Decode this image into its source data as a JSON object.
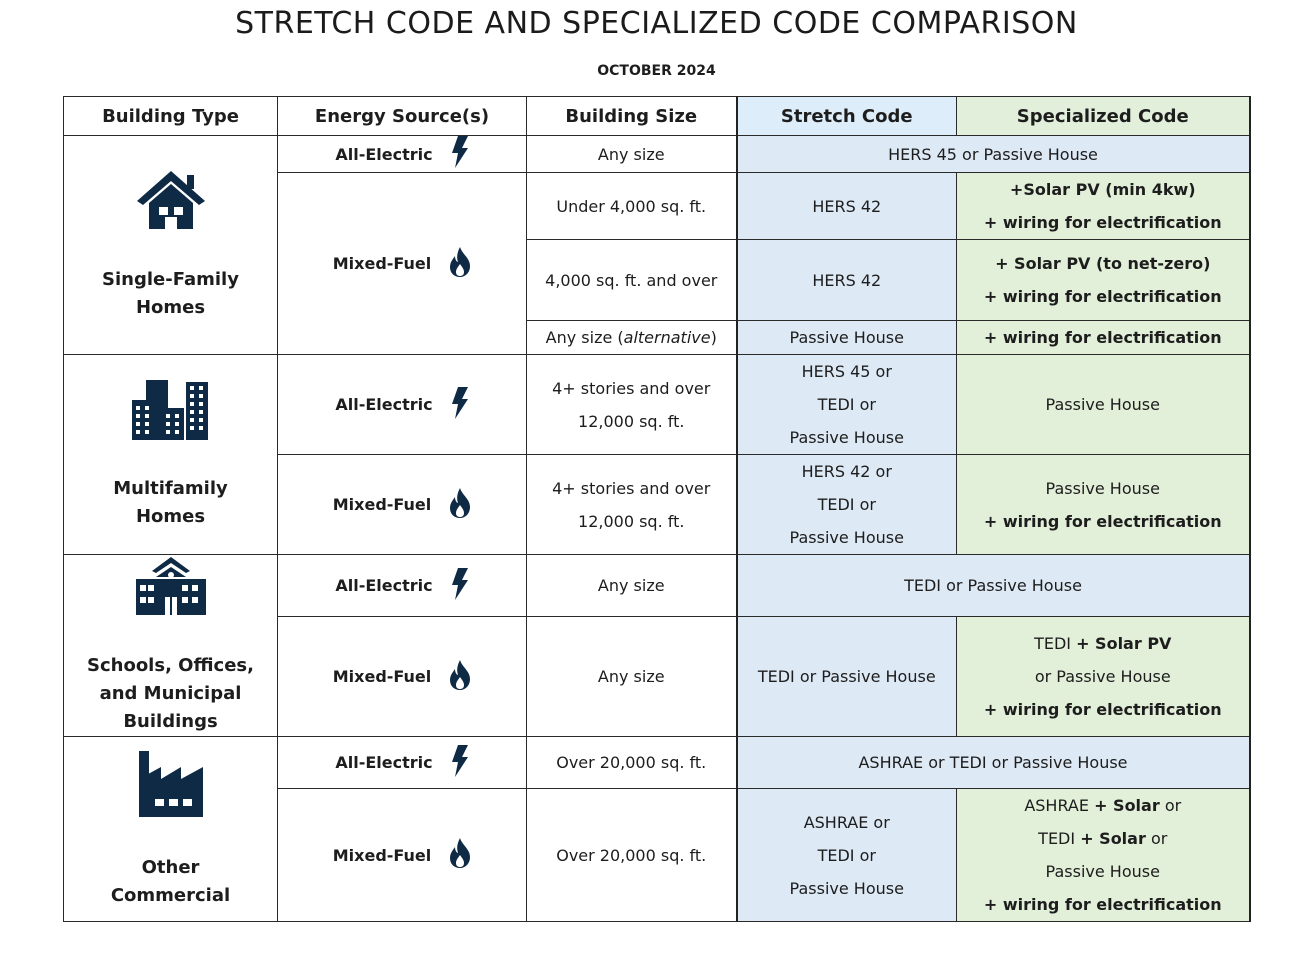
{
  "title": "STRETCH CODE AND SPECIALIZED CODE COMPARISON",
  "subtitle": "OCTOBER 2024",
  "table": {
    "headers": [
      "Building Type",
      "Energy  Source(s)",
      "Building Size",
      "Stretch Code",
      "Specialized Code"
    ],
    "groups": [
      {
        "building_type": "Single-Family Homes",
        "icon": "house",
        "sources": [
          {
            "name": "All-Electric",
            "kind": "electric",
            "rows": [
              {
                "size": [
                  [
                    "Any size"
                  ]
                ],
                "both": [
                  [
                    "HERS 45 or Passive House"
                  ]
                ]
              }
            ]
          },
          {
            "name": "Mixed-Fuel",
            "kind": "fuel",
            "rows": [
              {
                "size": [
                  [
                    "Under 4,000 sq. ft."
                  ]
                ],
                "stretch": [
                  [
                    "HERS 42"
                  ]
                ],
                "specialized": [
                  [
                    {
                      "bold": "+Solar PV (min 4kw)"
                    }
                  ],
                  [
                    {
                      "bold": "+ wiring for electrification"
                    }
                  ]
                ]
              },
              {
                "size": [
                  [
                    "4,000 sq. ft. and over"
                  ]
                ],
                "stretch": [
                  [
                    "HERS 42"
                  ]
                ],
                "specialized": [
                  [
                    {
                      "bold": "+ Solar PV (to net-zero)"
                    }
                  ],
                  [
                    {
                      "bold": "+ wiring for electrification"
                    }
                  ]
                ]
              },
              {
                "size": [
                  [
                    "Any size (",
                    {
                      "italic": "alternative"
                    },
                    ")"
                  ]
                ],
                "stretch": [
                  [
                    "Passive House"
                  ]
                ],
                "specialized": [
                  [
                    {
                      "bold": "+ wiring for electrification"
                    }
                  ]
                ]
              }
            ]
          }
        ]
      },
      {
        "building_type": "Multifamily Homes",
        "icon": "apartments",
        "sources": [
          {
            "name": "All-Electric",
            "kind": "electric",
            "rows": [
              {
                "size": [
                  [
                    "4+ stories and over"
                  ],
                  [
                    "12,000 sq. ft."
                  ]
                ],
                "stretch": [
                  [
                    "HERS 45 or"
                  ],
                  [
                    "TEDI or"
                  ],
                  [
                    "Passive House"
                  ]
                ],
                "specialized": [
                  [
                    "Passive House"
                  ]
                ]
              }
            ]
          },
          {
            "name": "Mixed-Fuel",
            "kind": "fuel",
            "rows": [
              {
                "size": [
                  [
                    "4+ stories and over"
                  ],
                  [
                    "12,000 sq. ft."
                  ]
                ],
                "stretch": [
                  [
                    "HERS 42 or"
                  ],
                  [
                    "TEDI or"
                  ],
                  [
                    "Passive House"
                  ]
                ],
                "specialized": [
                  [
                    "Passive House"
                  ],
                  [
                    {
                      "bold": "+ wiring for electrification"
                    }
                  ]
                ]
              }
            ]
          }
        ]
      },
      {
        "building_type": "Schools, Offices, and Municipal Buildings",
        "icon": "school",
        "sources": [
          {
            "name": "All-Electric",
            "kind": "electric",
            "rows": [
              {
                "size": [
                  [
                    "Any size"
                  ]
                ],
                "both": [
                  [
                    "TEDI or Passive House"
                  ]
                ]
              }
            ]
          },
          {
            "name": "Mixed-Fuel",
            "kind": "fuel",
            "rows": [
              {
                "size": [
                  [
                    "Any size"
                  ]
                ],
                "stretch": [
                  [
                    "TEDI or Passive House"
                  ]
                ],
                "specialized": [
                  [
                    "TEDI ",
                    {
                      "bold": "+ Solar PV"
                    }
                  ],
                  [
                    "or Passive House"
                  ],
                  [
                    {
                      "bold": "+ wiring for electrification"
                    }
                  ]
                ]
              }
            ]
          }
        ]
      },
      {
        "building_type": "Other Commercial",
        "icon": "factory",
        "sources": [
          {
            "name": "All-Electric",
            "kind": "electric",
            "rows": [
              {
                "size": [
                  [
                    "Over 20,000 sq. ft."
                  ]
                ],
                "both": [
                  [
                    "ASHRAE or TEDI or Passive House"
                  ]
                ]
              }
            ]
          },
          {
            "name": "Mixed-Fuel",
            "kind": "fuel",
            "rows": [
              {
                "size": [
                  [
                    "Over 20,000 sq. ft."
                  ]
                ],
                "stretch": [
                  [
                    "ASHRAE or"
                  ],
                  [
                    "TEDI or"
                  ],
                  [
                    "Passive House"
                  ]
                ],
                "specialized": [
                  [
                    "ASHRAE ",
                    {
                      "bold": "+ Solar"
                    },
                    " or"
                  ],
                  [
                    "TEDI ",
                    {
                      "bold": "+ Solar"
                    },
                    " or"
                  ],
                  [
                    "Passive House"
                  ],
                  [
                    {
                      "bold": "+ wiring for electrification"
                    }
                  ]
                ]
              }
            ]
          }
        ]
      }
    ]
  }
}
